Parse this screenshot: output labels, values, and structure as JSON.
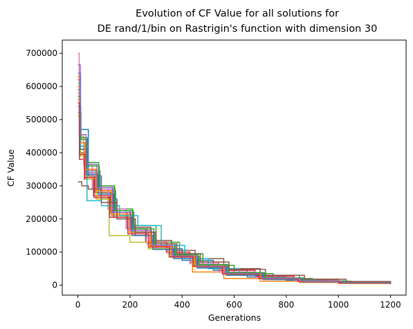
{
  "chart_data": {
    "type": "line",
    "title_line1": "Evolution of CF Value for all solutions for",
    "title_line2": "DE rand/1/bin on Rastrigin's function with dimension 30",
    "xlabel": "Generations",
    "ylabel": "CF Value",
    "xlim": [
      -60,
      1260
    ],
    "ylim": [
      -30000,
      740000
    ],
    "xticks": [
      0,
      200,
      400,
      600,
      800,
      1000,
      1200
    ],
    "yticks": [
      0,
      100000,
      200000,
      300000,
      400000,
      500000,
      600000,
      700000
    ],
    "xtick_labels": [
      "0",
      "200",
      "400",
      "600",
      "800",
      "1000",
      "1200"
    ],
    "ytick_labels": [
      "0",
      "100000",
      "200000",
      "300000",
      "400000",
      "500000",
      "600000",
      "700000"
    ],
    "grid": false,
    "legend": "none",
    "x_end": 1200,
    "series": [
      {
        "color": "#1f77b4",
        "start": 640000,
        "values": [
          [
            10,
            470000
          ],
          [
            40,
            330000
          ],
          [
            90,
            260000
          ],
          [
            150,
            200000
          ],
          [
            220,
            150000
          ],
          [
            300,
            110000
          ],
          [
            400,
            75000
          ],
          [
            520,
            45000
          ],
          [
            650,
            25000
          ],
          [
            800,
            14000
          ],
          [
            950,
            8000
          ],
          [
            1100,
            5000
          ],
          [
            1200,
            4000
          ]
        ]
      },
      {
        "color": "#ff7f0e",
        "start": 600000,
        "values": [
          [
            8,
            420000
          ],
          [
            30,
            350000
          ],
          [
            70,
            280000
          ],
          [
            130,
            210000
          ],
          [
            200,
            165000
          ],
          [
            280,
            120000
          ],
          [
            360,
            90000
          ],
          [
            440,
            40000
          ],
          [
            560,
            20000
          ],
          [
            700,
            12000
          ],
          [
            850,
            8000
          ],
          [
            1000,
            5000
          ],
          [
            1200,
            3000
          ]
        ]
      },
      {
        "color": "#2ca02c",
        "start": 520000,
        "values": [
          [
            12,
            440000
          ],
          [
            35,
            370000
          ],
          [
            80,
            300000
          ],
          [
            140,
            230000
          ],
          [
            210,
            180000
          ],
          [
            300,
            130000
          ],
          [
            390,
            95000
          ],
          [
            480,
            60000
          ],
          [
            600,
            35000
          ],
          [
            750,
            20000
          ],
          [
            900,
            12000
          ],
          [
            1050,
            7000
          ],
          [
            1200,
            5000
          ]
        ]
      },
      {
        "color": "#d62728",
        "start": 620000,
        "values": [
          [
            6,
            380000
          ],
          [
            25,
            320000
          ],
          [
            60,
            270000
          ],
          [
            120,
            220000
          ],
          [
            190,
            170000
          ],
          [
            260,
            130000
          ],
          [
            340,
            100000
          ],
          [
            430,
            70000
          ],
          [
            540,
            45000
          ],
          [
            680,
            28000
          ],
          [
            830,
            17000
          ],
          [
            1000,
            10000
          ],
          [
            1200,
            7000
          ]
        ]
      },
      {
        "color": "#9467bd",
        "start": 580000,
        "values": [
          [
            9,
            410000
          ],
          [
            32,
            340000
          ],
          [
            75,
            290000
          ],
          [
            135,
            215000
          ],
          [
            205,
            160000
          ],
          [
            290,
            115000
          ],
          [
            370,
            85000
          ],
          [
            460,
            55000
          ],
          [
            580,
            32000
          ],
          [
            720,
            18000
          ],
          [
            880,
            10000
          ],
          [
            1040,
            6000
          ],
          [
            1200,
            4000
          ]
        ]
      },
      {
        "color": "#8c564b",
        "start": 560000,
        "values": [
          [
            7,
            400000
          ],
          [
            28,
            330000
          ],
          [
            65,
            280000
          ],
          [
            125,
            225000
          ],
          [
            200,
            175000
          ],
          [
            280,
            135000
          ],
          [
            360,
            105000
          ],
          [
            450,
            80000
          ],
          [
            560,
            50000
          ],
          [
            700,
            30000
          ],
          [
            850,
            18000
          ],
          [
            1000,
            11000
          ],
          [
            1200,
            8000
          ]
        ]
      },
      {
        "color": "#e377c2",
        "start": 700000,
        "values": [
          [
            5,
            450000
          ],
          [
            22,
            360000
          ],
          [
            55,
            290000
          ],
          [
            115,
            230000
          ],
          [
            185,
            170000
          ],
          [
            265,
            125000
          ],
          [
            345,
            95000
          ],
          [
            430,
            65000
          ],
          [
            540,
            40000
          ],
          [
            680,
            24000
          ],
          [
            830,
            14000
          ],
          [
            990,
            8000
          ],
          [
            1200,
            5000
          ]
        ]
      },
      {
        "color": "#7f7f7f",
        "start": 540000,
        "values": [
          [
            11,
            430000
          ],
          [
            38,
            345000
          ],
          [
            85,
            285000
          ],
          [
            145,
            220000
          ],
          [
            215,
            160000
          ],
          [
            295,
            120000
          ],
          [
            375,
            88000
          ],
          [
            465,
            58000
          ],
          [
            580,
            35000
          ],
          [
            720,
            20000
          ],
          [
            870,
            12000
          ],
          [
            1030,
            7000
          ],
          [
            1200,
            4000
          ]
        ]
      },
      {
        "color": "#bcbd22",
        "start": 510000,
        "values": [
          [
            10,
            390000
          ],
          [
            30,
            320000
          ],
          [
            70,
            260000
          ],
          [
            120,
            150000
          ],
          [
            200,
            130000
          ],
          [
            270,
            110000
          ],
          [
            350,
            85000
          ],
          [
            440,
            60000
          ],
          [
            560,
            36000
          ],
          [
            700,
            21000
          ],
          [
            850,
            12000
          ],
          [
            1010,
            7000
          ],
          [
            1200,
            5000
          ]
        ]
      },
      {
        "color": "#17becf",
        "start": 610000,
        "values": [
          [
            9,
            420000
          ],
          [
            35,
            255000
          ],
          [
            90,
            240000
          ],
          [
            160,
            210000
          ],
          [
            230,
            180000
          ],
          [
            320,
            120000
          ],
          [
            410,
            80000
          ],
          [
            500,
            50000
          ],
          [
            620,
            30000
          ],
          [
            760,
            17000
          ],
          [
            910,
            10000
          ],
          [
            1070,
            6000
          ],
          [
            1200,
            4000
          ]
        ]
      },
      {
        "color": "#1f77b4",
        "start": 590000,
        "values": [
          [
            8,
            410000
          ],
          [
            33,
            335000
          ],
          [
            78,
            275000
          ],
          [
            138,
            205000
          ],
          [
            208,
            150000
          ],
          [
            288,
            108000
          ],
          [
            368,
            80000
          ],
          [
            458,
            52000
          ],
          [
            570,
            30000
          ],
          [
            710,
            17000
          ],
          [
            860,
            10000
          ],
          [
            1020,
            6000
          ],
          [
            1200,
            3500
          ]
        ]
      },
      {
        "color": "#ff7f0e",
        "start": 630000,
        "values": [
          [
            7,
            430000
          ],
          [
            27,
            350000
          ],
          [
            68,
            285000
          ],
          [
            128,
            215000
          ],
          [
            198,
            160000
          ],
          [
            278,
            118000
          ],
          [
            358,
            86000
          ],
          [
            448,
            56000
          ],
          [
            560,
            33000
          ],
          [
            700,
            19000
          ],
          [
            850,
            11000
          ],
          [
            1010,
            6500
          ],
          [
            1200,
            4500
          ]
        ]
      },
      {
        "color": "#2ca02c",
        "start": 570000,
        "values": [
          [
            10,
            445000
          ],
          [
            36,
            360000
          ],
          [
            82,
            295000
          ],
          [
            142,
            225000
          ],
          [
            212,
            170000
          ],
          [
            292,
            125000
          ],
          [
            372,
            92000
          ],
          [
            462,
            62000
          ],
          [
            575,
            38000
          ],
          [
            715,
            22000
          ],
          [
            865,
            13000
          ],
          [
            1025,
            8000
          ],
          [
            1200,
            5500
          ]
        ]
      },
      {
        "color": "#d62728",
        "start": 550000,
        "values": [
          [
            6,
            395000
          ],
          [
            26,
            325000
          ],
          [
            62,
            265000
          ],
          [
            122,
            205000
          ],
          [
            192,
            155000
          ],
          [
            272,
            115000
          ],
          [
            352,
            85000
          ],
          [
            442,
            57000
          ],
          [
            555,
            34000
          ],
          [
            695,
            20000
          ],
          [
            845,
            12000
          ],
          [
            1005,
            7000
          ],
          [
            1200,
            4500
          ]
        ]
      },
      {
        "color": "#9467bd",
        "start": 665000,
        "values": [
          [
            9,
            455000
          ],
          [
            31,
            365000
          ],
          [
            73,
            295000
          ],
          [
            133,
            220000
          ],
          [
            203,
            165000
          ],
          [
            283,
            120000
          ],
          [
            363,
            88000
          ],
          [
            453,
            58000
          ],
          [
            565,
            35000
          ],
          [
            705,
            20000
          ],
          [
            855,
            12000
          ],
          [
            1015,
            7000
          ],
          [
            1200,
            4000
          ]
        ]
      },
      {
        "color": "#8c564b",
        "start": 312000,
        "values": [
          [
            15,
            300000
          ],
          [
            40,
            290000
          ],
          [
            90,
            250000
          ],
          [
            150,
            200000
          ],
          [
            220,
            160000
          ],
          [
            300,
            125000
          ],
          [
            380,
            95000
          ],
          [
            470,
            70000
          ],
          [
            580,
            48000
          ],
          [
            720,
            30000
          ],
          [
            870,
            18000
          ],
          [
            1030,
            11000
          ],
          [
            1200,
            7000
          ]
        ]
      }
    ]
  }
}
